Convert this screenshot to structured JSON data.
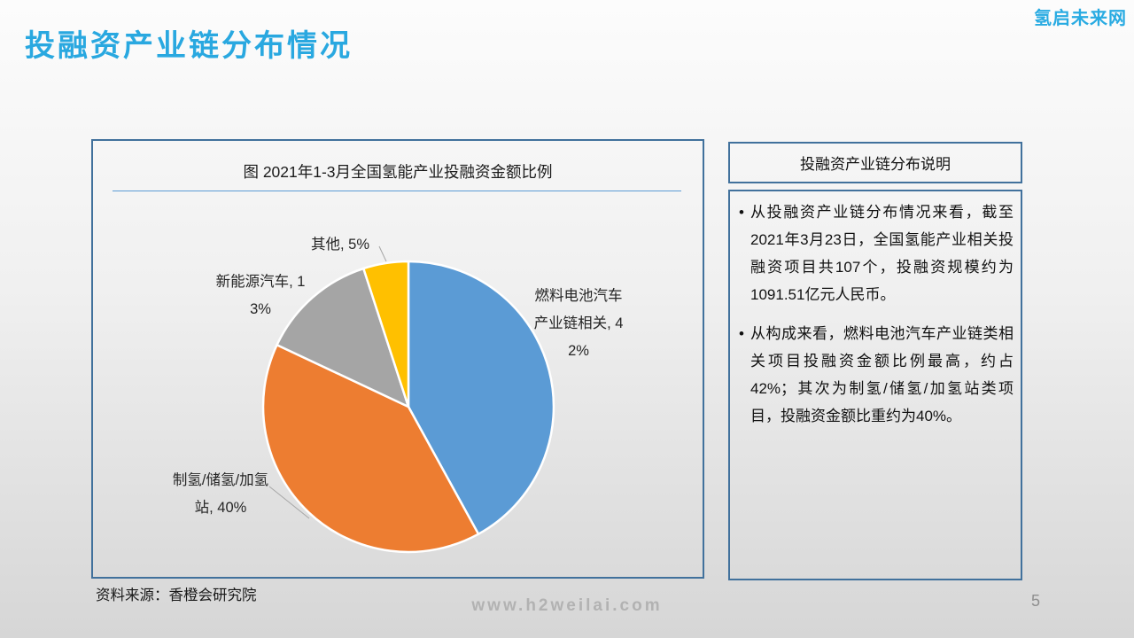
{
  "slide": {
    "title": "投融资产业链分布情况",
    "logo": "氢启未来网",
    "page_number": "5",
    "source": "资料来源：香橙会研究院",
    "watermark": "www.h2weilai.com"
  },
  "colors": {
    "accent_blue": "#29A8E0",
    "panel_border": "#41719C",
    "title_rule": "#5B9BD5",
    "slice_blue": "#5B9BD5",
    "slice_orange": "#ED7D31",
    "slice_gray": "#A5A5A5",
    "slice_yellow": "#FFC000"
  },
  "chart_data": {
    "type": "pie",
    "title": "图 2021年1-3月全国氢能产业投融资金额比例",
    "labels": [
      "燃料电池汽车产业链相关",
      "制氢/储氢/加氢站",
      "新能源汽车",
      "其他"
    ],
    "values": [
      42,
      40,
      13,
      5
    ],
    "unit": "%",
    "colors": [
      "#5B9BD5",
      "#ED7D31",
      "#A5A5A5",
      "#FFC000"
    ],
    "start_angle_deg": 0,
    "direction": "clockwise",
    "legend": "none",
    "label_format": "{label}, {value}%"
  },
  "notes": {
    "header": "投融资产业链分布说明",
    "bullet_char": "•",
    "items": [
      "从投融资产业链分布情况来看，截至2021年3月23日，全国氢能产业相关投融资项目共107个，投融资规模约为1091.51亿元人民币。",
      "从构成来看，燃料电池汽车产业链类相关项目投融资金额比例最高，约占42%；其次为制氢/储氢/加氢站类项目，投融资金额比重约为40%。"
    ]
  }
}
